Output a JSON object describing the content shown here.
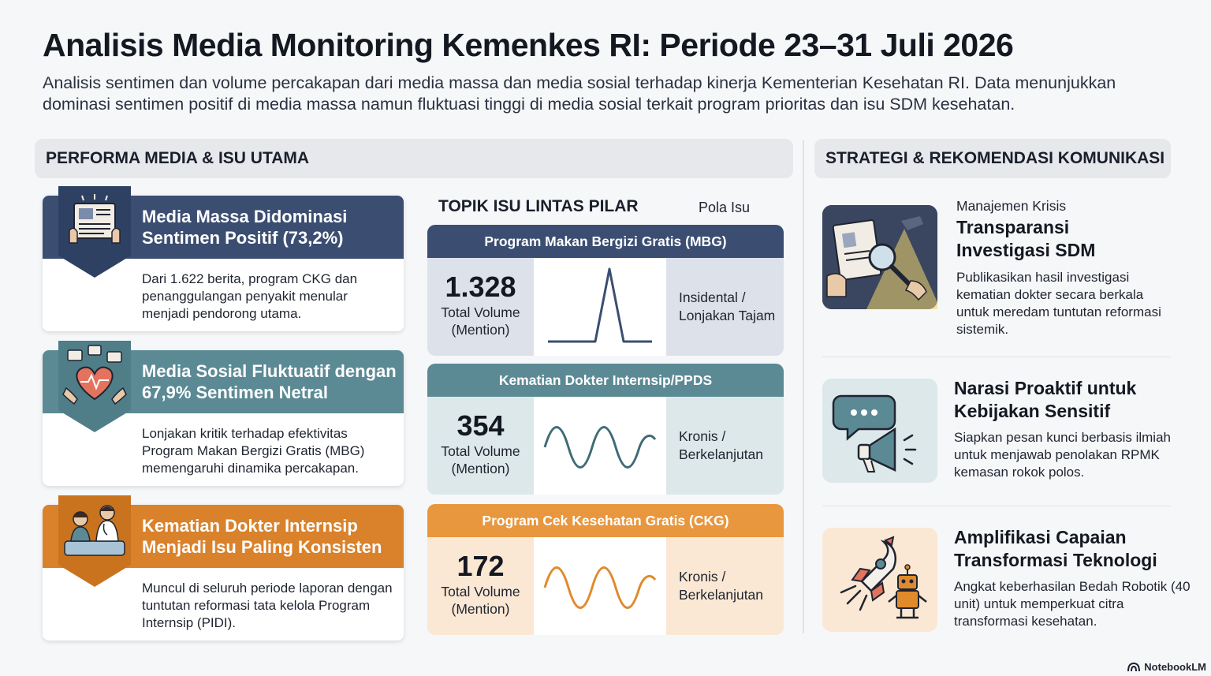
{
  "header": {
    "title": "Analisis Media Monitoring Kemenkes RI: Periode 23–31 Juli 2026",
    "subtitle": "Analisis sentimen dan volume percakapan dari media massa dan media sosial terhadap kinerja Kementerian Kesehatan RI. Data menunjukkan dominasi sentimen positif di media massa namun fluktuasi tinggi di media sosial terkait program prioritas dan isu SDM kesehatan."
  },
  "left_section": {
    "title": "PERFORMA MEDIA & ISU UTAMA",
    "cards": [
      {
        "title": "Media Massa Didominasi Sentimen Positif (73,2%)",
        "body": "Dari 1.622 berita, program CKG dan penanggulangan penyakit menular menjadi pendorong utama.",
        "color": "#3b4e72",
        "icon": "newspaper-icon"
      },
      {
        "title": "Media Sosial Fluktuatif dengan 67,9% Sentimen Netral",
        "body": "Lonjakan kritik terhadap efektivitas Program Makan Bergizi Gratis (MBG) memengaruhi dinamika percakapan.",
        "color": "#5b8a95",
        "icon": "heart-hands-icon"
      },
      {
        "title": "Kematian Dokter Internsip Menjadi Isu Paling Konsisten",
        "body": "Muncul di seluruh periode laporan dengan tuntutan reformasi tata kelola Program Internsip (PIDI).",
        "color": "#d9822b",
        "icon": "doctor-patient-icon"
      }
    ]
  },
  "topics": {
    "title": "TOPIK ISU LINTAS PILAR",
    "pattern_label": "Pola Isu",
    "items": [
      {
        "name": "Program Makan Bergizi Gratis (MBG)",
        "volume": "1.328",
        "volume_label": "Total Volume (Mention)",
        "pattern": "Insidental / Lonjakan Tajam",
        "color": "#3b4e72",
        "bg": "#dde1ea",
        "line_color": "#3b4e72",
        "graph": "spike"
      },
      {
        "name": "Kematian Dokter Internsip/PPDS",
        "volume": "354",
        "volume_label": "Total Volume (Mention)",
        "pattern": "Kronis / Berkelanjutan",
        "color": "#5b8a95",
        "bg": "#dde8ea",
        "line_color": "#3f6b77",
        "graph": "wave"
      },
      {
        "name": "Program Cek Kesehatan Gratis (CKG)",
        "volume": "172",
        "volume_label": "Total Volume (Mention)",
        "pattern": "Kronis / Berkelanjutan",
        "color": "#e8973e",
        "bg": "#fbe8d4",
        "line_color": "#e08a2c",
        "graph": "wave"
      }
    ]
  },
  "right_section": {
    "title": "STRATEGI & REKOMENDASI KOMUNIKASI",
    "items": [
      {
        "label": "Manajemen Krisis",
        "title": "Transparansi Investigasi SDM",
        "body": "Publikasikan hasil investigasi kematian dokter secara berkala untuk meredam tuntutan reformasi sistemik.",
        "icon": "magnifier-document-icon"
      },
      {
        "label": "",
        "title": "Narasi Proaktif untuk Kebijakan Sensitif",
        "body": "Siapkan pesan kunci berbasis ilmiah untuk menjawab penolakan RPMK kemasan rokok polos.",
        "icon": "megaphone-icon"
      },
      {
        "label": "",
        "title": "Amplifikasi Capaian Transformasi Teknologi",
        "body": "Angkat keberhasilan Bedah Robotik (40 unit) untuk memperkuat citra transformasi kesehatan.",
        "icon": "rocket-robot-icon"
      }
    ]
  },
  "brand": "NotebookLM"
}
